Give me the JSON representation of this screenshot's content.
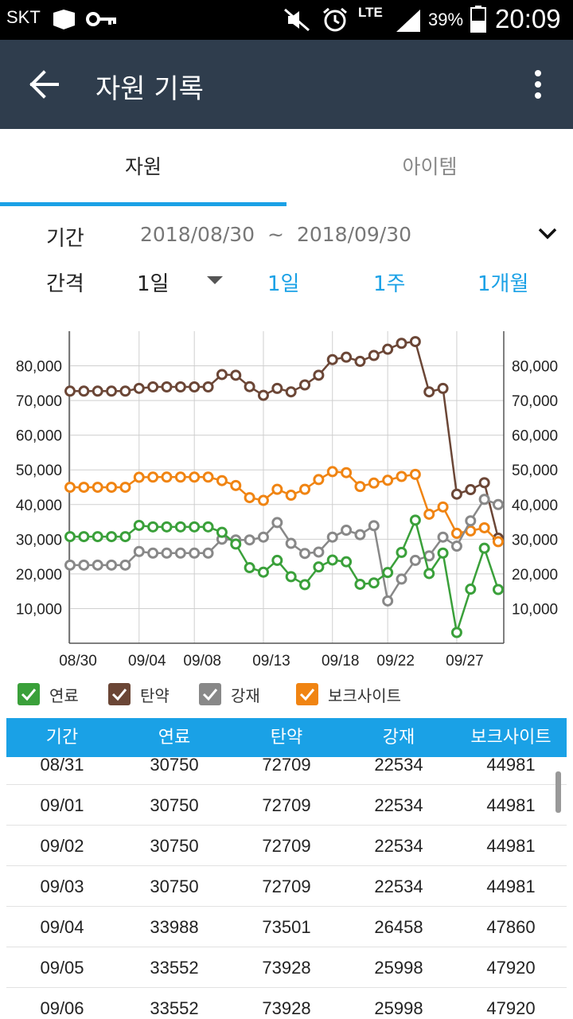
{
  "status": {
    "carrier": "SKT",
    "network": "LTE",
    "battery": "39%",
    "time": "20:09"
  },
  "appbar": {
    "title": "자원 기록"
  },
  "tabs": [
    {
      "label": "자원"
    },
    {
      "label": "아이템"
    }
  ],
  "period": {
    "label": "기간",
    "start": "2018/08/30",
    "separator": "~",
    "end": "2018/09/30"
  },
  "interval": {
    "label": "간격",
    "selected": "1일",
    "quick": [
      "1일",
      "1주",
      "1개월"
    ]
  },
  "colors": {
    "fuel": "#3aa03a",
    "ammo": "#6b4636",
    "steel": "#888888",
    "bauxite": "#f08412",
    "accent": "#1aa1e6",
    "appbar": "#2f3d4d"
  },
  "chart_data": {
    "type": "line",
    "x": [
      "08/30",
      "08/31",
      "09/01",
      "09/02",
      "09/03",
      "09/04",
      "09/05",
      "09/06",
      "09/07",
      "09/08",
      "09/09",
      "09/10",
      "09/11",
      "09/12",
      "09/13",
      "09/14",
      "09/15",
      "09/16",
      "09/17",
      "09/18",
      "09/19",
      "09/20",
      "09/21",
      "09/22",
      "09/23",
      "09/24",
      "09/25",
      "09/26",
      "09/27",
      "09/28",
      "09/29",
      "09/30"
    ],
    "x_tick_labels": [
      "08/30",
      "09/04",
      "09/08",
      "09/13",
      "09/18",
      "09/22",
      "09/27"
    ],
    "y_ticks": [
      "10,000",
      "20,000",
      "30,000",
      "40,000",
      "50,000",
      "60,000",
      "70,000",
      "80,000"
    ],
    "ylim": [
      0,
      90000
    ],
    "grid": true,
    "series": [
      {
        "name": "연료",
        "color": "#3aa03a",
        "values": [
          30750,
          30750,
          30750,
          30750,
          30750,
          33988,
          33552,
          33552,
          33552,
          33552,
          33552,
          32000,
          28600,
          21800,
          20500,
          23900,
          19200,
          16900,
          22000,
          24000,
          23500,
          17000,
          17400,
          20400,
          26200,
          35500,
          20100,
          26000,
          3100,
          15600,
          27400,
          15500
        ]
      },
      {
        "name": "탄약",
        "color": "#6b4636",
        "values": [
          72709,
          72709,
          72709,
          72709,
          72709,
          73501,
          73928,
          73928,
          73928,
          73928,
          73928,
          77500,
          77300,
          74000,
          71500,
          73500,
          72500,
          74500,
          77300,
          81800,
          82500,
          81300,
          83000,
          84800,
          86500,
          87000,
          72500,
          73500,
          43000,
          44300,
          46300,
          30300
        ]
      },
      {
        "name": "강재",
        "color": "#888888",
        "values": [
          22534,
          22534,
          22534,
          22534,
          22534,
          26458,
          25998,
          25998,
          25998,
          25998,
          25998,
          30000,
          29800,
          29800,
          30600,
          34800,
          28800,
          25900,
          26300,
          30600,
          32600,
          31300,
          33900,
          12200,
          18500,
          23900,
          25200,
          30600,
          28000,
          35300,
          41500,
          40000
        ]
      },
      {
        "name": "보크사이트",
        "color": "#f08412",
        "values": [
          44981,
          44981,
          44981,
          44981,
          44981,
          47860,
          47920,
          47920,
          47920,
          47920,
          47920,
          46900,
          45500,
          42000,
          41200,
          44400,
          42700,
          44400,
          47200,
          49500,
          49200,
          45200,
          46200,
          47000,
          48100,
          48700,
          37200,
          39300,
          31700,
          32400,
          33300,
          29300
        ]
      }
    ]
  },
  "legend": [
    {
      "label": "연료",
      "color": "#3aa03a"
    },
    {
      "label": "탄약",
      "color": "#6b4636"
    },
    {
      "label": "강재",
      "color": "#888888"
    },
    {
      "label": "보크사이트",
      "color": "#f08412"
    }
  ],
  "table": {
    "headers": [
      "기간",
      "연료",
      "탄약",
      "강재",
      "보크사이트"
    ],
    "rows": [
      [
        "08/31",
        "30750",
        "72709",
        "22534",
        "44981"
      ],
      [
        "09/01",
        "30750",
        "72709",
        "22534",
        "44981"
      ],
      [
        "09/02",
        "30750",
        "72709",
        "22534",
        "44981"
      ],
      [
        "09/03",
        "30750",
        "72709",
        "22534",
        "44981"
      ],
      [
        "09/04",
        "33988",
        "73501",
        "26458",
        "47860"
      ],
      [
        "09/05",
        "33552",
        "73928",
        "25998",
        "47920"
      ],
      [
        "09/06",
        "33552",
        "73928",
        "25998",
        "47920"
      ]
    ]
  }
}
